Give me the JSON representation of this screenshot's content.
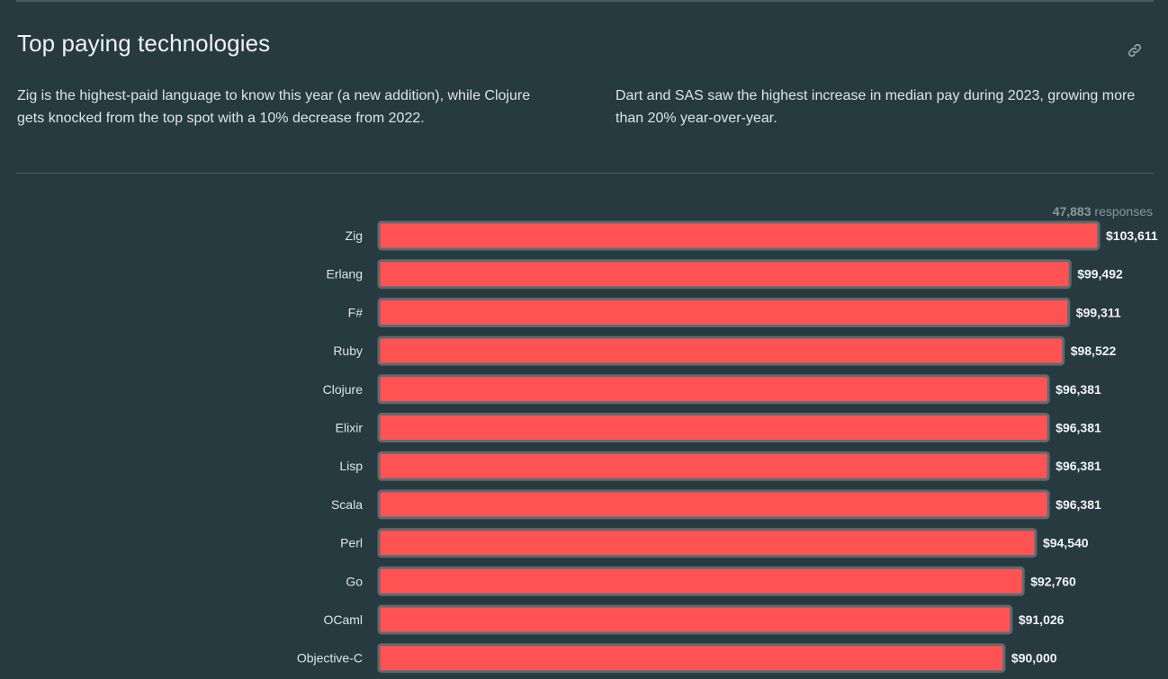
{
  "section": {
    "title": "Top paying technologies",
    "insight_left": "Zig is the highest-paid language to know this year (a new addition), while Clojure gets knocked from the top spot with a 10% decrease from 2022.",
    "insight_right": "Dart and SAS saw the highest increase in median pay during 2023, growing more than 20% year-over-year.",
    "link_icon": "link-icon"
  },
  "responses": {
    "count": "47,883",
    "label": "responses"
  },
  "colors": {
    "background": "#263a40",
    "bar": "#ff5252",
    "bar_border": "#5c6b70"
  },
  "chart_data": {
    "type": "bar",
    "orientation": "horizontal",
    "title": "",
    "xlabel": "",
    "ylabel": "",
    "xlim": [
      0,
      103611
    ],
    "grid": false,
    "categories": [
      "Zig",
      "Erlang",
      "F#",
      "Ruby",
      "Clojure",
      "Elixir",
      "Lisp",
      "Scala",
      "Perl",
      "Go",
      "OCaml",
      "Objective-C"
    ],
    "values": [
      103611,
      99492,
      99311,
      98522,
      96381,
      96381,
      96381,
      96381,
      94540,
      92760,
      91026,
      90000
    ],
    "value_labels": [
      "$103,611",
      "$99,492",
      "$99,311",
      "$98,522",
      "$96,381",
      "$96,381",
      "$96,381",
      "$96,381",
      "$94,540",
      "$92,760",
      "$91,026",
      "$90,000"
    ]
  }
}
